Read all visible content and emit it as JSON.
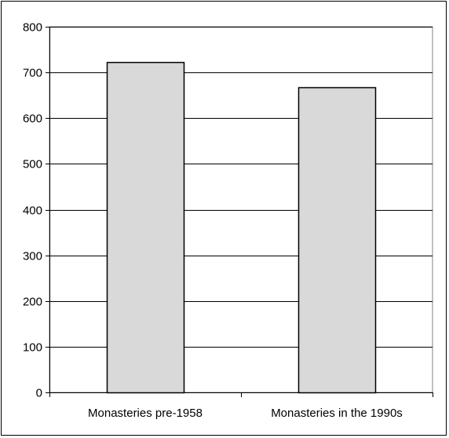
{
  "chart_data": {
    "type": "bar",
    "categories": [
      "Monasteries pre-1958",
      "Monasteries in the 1990s"
    ],
    "values": [
      722,
      668
    ],
    "ylim": [
      0,
      800
    ],
    "yticks": [
      0,
      100,
      200,
      300,
      400,
      500,
      600,
      700,
      800
    ],
    "ytick_labels": [
      "0",
      "100",
      "200",
      "300",
      "400",
      "500",
      "600",
      "700",
      "800"
    ],
    "grid": true,
    "legend": "none",
    "bar_color": "#d9d9d9",
    "bar_edge_color": "#000000",
    "grid_color": "#000000"
  }
}
